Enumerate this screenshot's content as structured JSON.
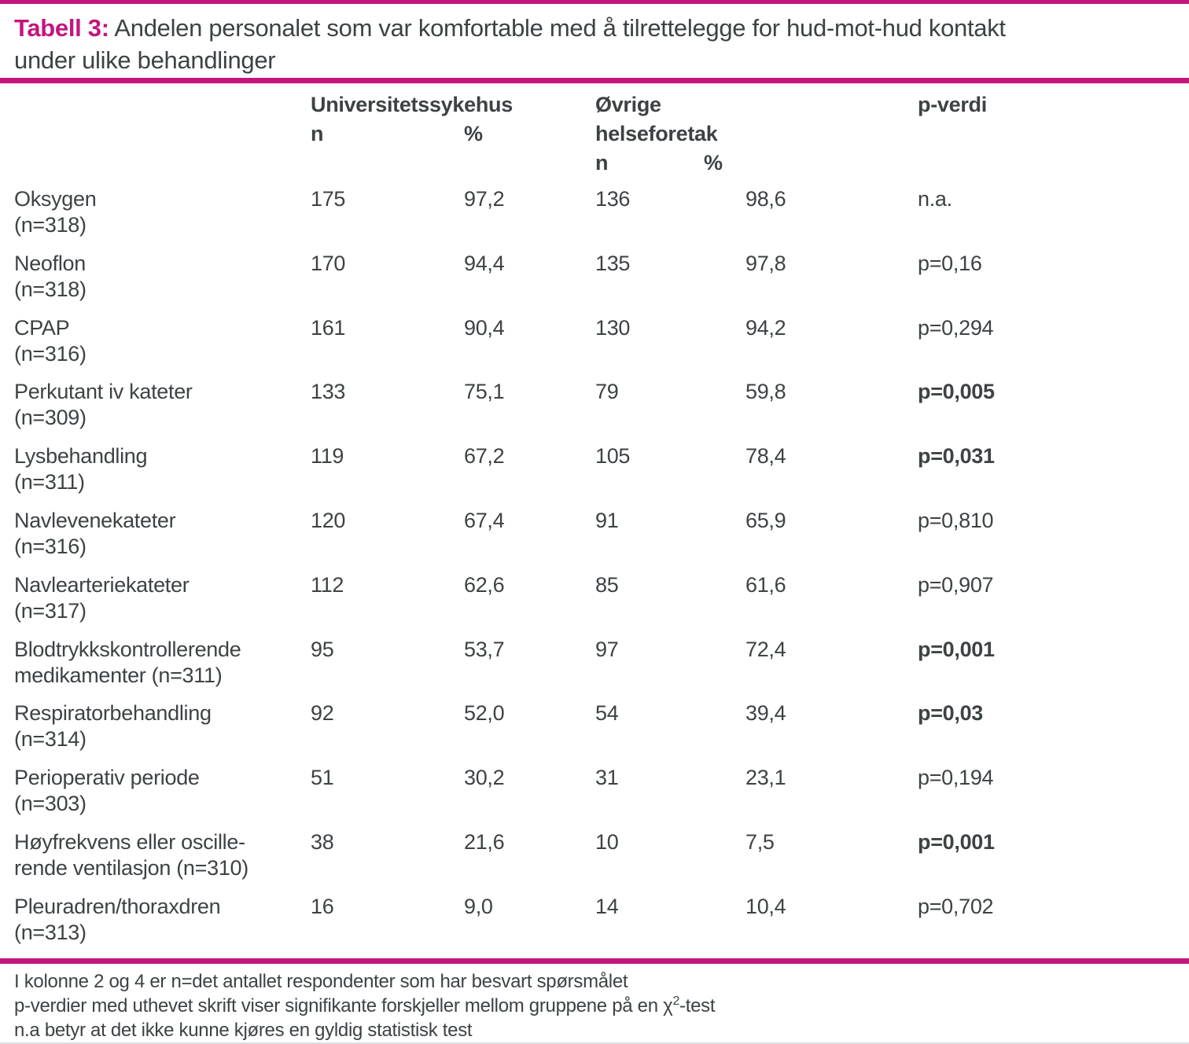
{
  "colors": {
    "accent": "#c2157e",
    "text": "#3d4245"
  },
  "title": {
    "prefix": "Tabell 3:",
    "line1": "Andelen personalet som var komfortable med å tilrettelegge for hud-mot-hud kontakt",
    "line2": "under ulike behandlinger"
  },
  "table": {
    "header": {
      "uni": "Universitetssykehus",
      "uni_n": "n",
      "uni_pct": "%",
      "other_line1": "Øvrige",
      "other_line2": "helseforetak",
      "other_n": "n",
      "other_pct": "%",
      "p": "p-verdi"
    },
    "rows": [
      {
        "line1": "Oksygen",
        "line2": "(n=318)",
        "uni_n": "175",
        "uni_pct": "97,2",
        "other_n": "136",
        "other_pct": "98,6",
        "p_value": "n.a.",
        "p_bold": false
      },
      {
        "line1": "Neoflon",
        "line2": "(n=318)",
        "uni_n": "170",
        "uni_pct": "94,4",
        "other_n": "135",
        "other_pct": "97,8",
        "p_value": "p=0,16",
        "p_bold": false
      },
      {
        "line1": "CPAP",
        "line2": "(n=316)",
        "uni_n": "161",
        "uni_pct": "90,4",
        "other_n": "130",
        "other_pct": "94,2",
        "p_value": "p=0,294",
        "p_bold": false
      },
      {
        "line1": "Perkutant iv kateter",
        "line2": "(n=309)",
        "uni_n": "133",
        "uni_pct": "75,1",
        "other_n": "79",
        "other_pct": "59,8",
        "p_value": "p=0,005",
        "p_bold": true
      },
      {
        "line1": "Lysbehandling",
        "line2": "(n=311)",
        "uni_n": "119",
        "uni_pct": "67,2",
        "other_n": "105",
        "other_pct": "78,4",
        "p_value": "p=0,031",
        "p_bold": true
      },
      {
        "line1": "Navlevenekateter",
        "line2": "(n=316)",
        "uni_n": "120",
        "uni_pct": "67,4",
        "other_n": "91",
        "other_pct": "65,9",
        "p_value": "p=0,810",
        "p_bold": false
      },
      {
        "line1": "Navlearteriekateter",
        "line2": "(n=317)",
        "uni_n": "112",
        "uni_pct": "62,6",
        "other_n": "85",
        "other_pct": "61,6",
        "p_value": "p=0,907",
        "p_bold": false
      },
      {
        "line1": "Blodtrykkskontrollerende",
        "line2": "medikamenter (n=311)",
        "uni_n": "95",
        "uni_pct": "53,7",
        "other_n": "97",
        "other_pct": "72,4",
        "p_value": "p=0,001",
        "p_bold": true
      },
      {
        "line1": "Respiratorbehandling",
        "line2": "(n=314)",
        "uni_n": "92",
        "uni_pct": "52,0",
        "other_n": "54",
        "other_pct": "39,4",
        "p_value": "p=0,03",
        "p_bold": true
      },
      {
        "line1": "Perioperativ periode",
        "line2": "(n=303)",
        "uni_n": "51",
        "uni_pct": "30,2",
        "other_n": "31",
        "other_pct": "23,1",
        "p_value": "p=0,194",
        "p_bold": false
      },
      {
        "line1": "Høyfrekvens eller oscille-",
        "line2": "rende ventilasjon (n=310)",
        "uni_n": "38",
        "uni_pct": "21,6",
        "other_n": "10",
        "other_pct": "7,5",
        "p_value": "p=0,001",
        "p_bold": true
      },
      {
        "line1": "Pleuradren/thoraxdren",
        "line2": "(n=313)",
        "uni_n": "16",
        "uni_pct": "9,0",
        "other_n": "14",
        "other_pct": "10,4",
        "p_value": "p=0,702",
        "p_bold": false
      }
    ]
  },
  "footnotes": {
    "line1": "I kolonne 2 og 4 er n=det antallet respondenter som har besvart spørsmålet",
    "line2_pre": "p-verdier med uthevet skrift viser signifikante forskjeller mellom gruppene på en ",
    "line2_chi": "χ",
    "line2_sup": "2",
    "line2_post": "-test",
    "line3": "n.a betyr at det ikke kunne kjøres en gyldig statistisk test"
  }
}
